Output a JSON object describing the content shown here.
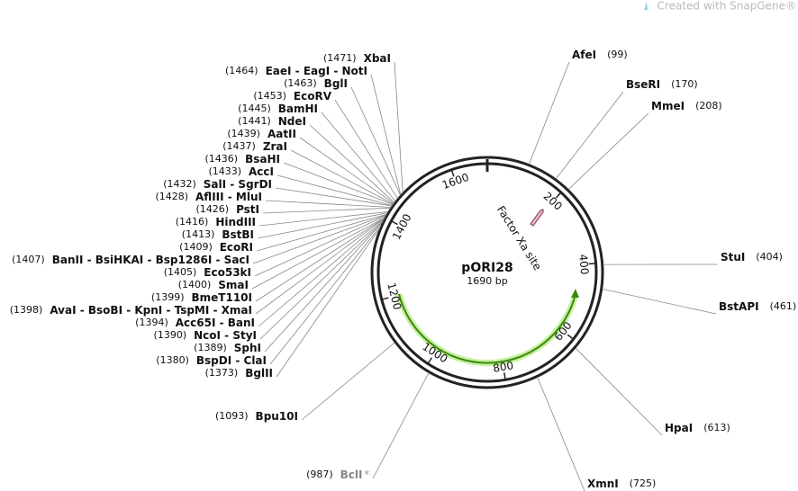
{
  "header": {
    "watermark": "Created with SnapGene®"
  },
  "plasmid": {
    "name": "pORI28",
    "length": {
      "value": 1690,
      "label": "1690 bp"
    },
    "ticks": [
      200,
      400,
      600,
      800,
      1000,
      1200,
      1400,
      1600
    ]
  },
  "features": [
    {
      "name": "Factor Xa site"
    }
  ],
  "sites": [
    {
      "name": "AfeI",
      "position": 99,
      "label": "(99)"
    },
    {
      "name": "BseRI",
      "position": 170,
      "label": "(170)"
    },
    {
      "name": "MmeI",
      "position": 208,
      "label": "(208)"
    },
    {
      "name": "StuI",
      "position": 404,
      "label": "(404)"
    },
    {
      "name": "BstAPI",
      "position": 461,
      "label": "(461)"
    },
    {
      "name": "HpaI",
      "position": 613,
      "label": "(613)"
    },
    {
      "name": "XmnI",
      "position": 725,
      "label": "(725)"
    },
    {
      "name": "BclI",
      "position": 987,
      "label": "(987)",
      "marker": "*"
    },
    {
      "name": "Bpu10I",
      "position": 1093,
      "label": "(1093)"
    },
    {
      "name": "BglII",
      "position": 1373,
      "label": "(1373)"
    },
    {
      "name": "BspDI - ClaI",
      "position": 1380,
      "label": "(1380)"
    },
    {
      "name": "SphI",
      "position": 1389,
      "label": "(1389)"
    },
    {
      "name": "NcoI - StyI",
      "position": 1390,
      "label": "(1390)"
    },
    {
      "name": "Acc65I - BanI",
      "position": 1394,
      "label": "(1394)"
    },
    {
      "name": "AvaI - BsoBI - KpnI - TspMI - XmaI",
      "position": 1398,
      "label": "(1398)"
    },
    {
      "name": "BmeT110I",
      "position": 1399,
      "label": "(1399)"
    },
    {
      "name": "SmaI",
      "position": 1400,
      "label": "(1400)"
    },
    {
      "name": "Eco53kI",
      "position": 1405,
      "label": "(1405)"
    },
    {
      "name": "BanII - BsiHKAI - Bsp1286I - SacI",
      "position": 1407,
      "label": "(1407)"
    },
    {
      "name": "EcoRI",
      "position": 1409,
      "label": "(1409)"
    },
    {
      "name": "BstBI",
      "position": 1413,
      "label": "(1413)"
    },
    {
      "name": "HindIII",
      "position": 1416,
      "label": "(1416)"
    },
    {
      "name": "PstI",
      "position": 1426,
      "label": "(1426)"
    },
    {
      "name": "AflIII - MluI",
      "position": 1428,
      "label": "(1428)"
    },
    {
      "name": "SalI - SgrDI",
      "position": 1432,
      "label": "(1432)"
    },
    {
      "name": "AccI",
      "position": 1433,
      "label": "(1433)"
    },
    {
      "name": "BsaHI",
      "position": 1436,
      "label": "(1436)"
    },
    {
      "name": "ZraI",
      "position": 1437,
      "label": "(1437)"
    },
    {
      "name": "AatII",
      "position": 1439,
      "label": "(1439)"
    },
    {
      "name": "NdeI",
      "position": 1441,
      "label": "(1441)"
    },
    {
      "name": "BamHI",
      "position": 1445,
      "label": "(1445)"
    },
    {
      "name": "EcoRV",
      "position": 1453,
      "label": "(1453)"
    },
    {
      "name": "BglI",
      "position": 1463,
      "label": "(1463)"
    },
    {
      "name": "EaeI - EagI - NotI",
      "position": 1464,
      "label": "(1464)"
    },
    {
      "name": "XbaI",
      "position": 1471,
      "label": "(1471)"
    }
  ]
}
